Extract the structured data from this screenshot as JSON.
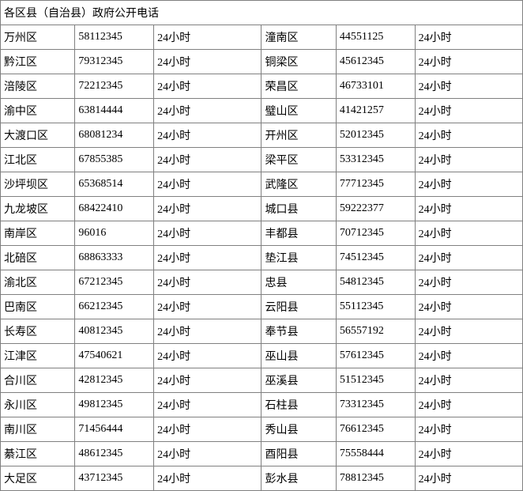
{
  "table": {
    "title": "各区县（自治县）政府公开电话",
    "rows": [
      {
        "left_district": "万州区",
        "left_phone": "58112345",
        "left_hours": "24小时",
        "right_district": "潼南区",
        "right_phone": "44551125",
        "right_hours": "24小时"
      },
      {
        "left_district": "黔江区",
        "left_phone": "79312345",
        "left_hours": "24小时",
        "right_district": "铜梁区",
        "right_phone": "45612345",
        "right_hours": "24小时"
      },
      {
        "left_district": "涪陵区",
        "left_phone": "72212345",
        "left_hours": "24小时",
        "right_district": "荣昌区",
        "right_phone": "46733101",
        "right_hours": "24小时"
      },
      {
        "left_district": "渝中区",
        "left_phone": "63814444",
        "left_hours": "24小时",
        "right_district": "璧山区",
        "right_phone": "41421257",
        "right_hours": "24小时"
      },
      {
        "left_district": "大渡口区",
        "left_phone": "68081234",
        "left_hours": "24小时",
        "right_district": "开州区",
        "right_phone": "52012345",
        "right_hours": "24小时"
      },
      {
        "left_district": "江北区",
        "left_phone": "67855385",
        "left_hours": "24小时",
        "right_district": "梁平区",
        "right_phone": "53312345",
        "right_hours": "24小时"
      },
      {
        "left_district": "沙坪坝区",
        "left_phone": "65368514",
        "left_hours": "24小时",
        "right_district": "武隆区",
        "right_phone": "77712345",
        "right_hours": "24小时"
      },
      {
        "left_district": "九龙坡区",
        "left_phone": "68422410",
        "left_hours": "24小时",
        "right_district": "城口县",
        "right_phone": "59222377",
        "right_hours": "24小时"
      },
      {
        "left_district": "南岸区",
        "left_phone": "96016",
        "left_hours": "24小时",
        "right_district": "丰都县",
        "right_phone": "70712345",
        "right_hours": "24小时"
      },
      {
        "left_district": "北碚区",
        "left_phone": "68863333",
        "left_hours": "24小时",
        "right_district": "垫江县",
        "right_phone": "74512345",
        "right_hours": "24小时"
      },
      {
        "left_district": "渝北区",
        "left_phone": "67212345",
        "left_hours": "24小时",
        "right_district": "忠县",
        "right_phone": "54812345",
        "right_hours": "24小时"
      },
      {
        "left_district": "巴南区",
        "left_phone": "66212345",
        "left_hours": "24小时",
        "right_district": "云阳县",
        "right_phone": "55112345",
        "right_hours": "24小时"
      },
      {
        "left_district": "长寿区",
        "left_phone": "40812345",
        "left_hours": "24小时",
        "right_district": "奉节县",
        "right_phone": "56557192",
        "right_hours": "24小时"
      },
      {
        "left_district": "江津区",
        "left_phone": "47540621",
        "left_hours": "24小时",
        "right_district": "巫山县",
        "right_phone": "57612345",
        "right_hours": "24小时"
      },
      {
        "left_district": "合川区",
        "left_phone": "42812345",
        "left_hours": "24小时",
        "right_district": "巫溪县",
        "right_phone": "51512345",
        "right_hours": "24小时"
      },
      {
        "left_district": "永川区",
        "left_phone": "49812345",
        "left_hours": "24小时",
        "right_district": "石柱县",
        "right_phone": "73312345",
        "right_hours": "24小时"
      },
      {
        "left_district": "南川区",
        "left_phone": "71456444",
        "left_hours": "24小时",
        "right_district": "秀山县",
        "right_phone": "76612345",
        "right_hours": "24小时"
      },
      {
        "left_district": "綦江区",
        "left_phone": "48612345",
        "left_hours": "24小时",
        "right_district": "酉阳县",
        "right_phone": "75558444",
        "right_hours": "24小时"
      },
      {
        "left_district": "大足区",
        "left_phone": "43712345",
        "left_hours": "24小时",
        "right_district": "彭水县",
        "right_phone": "78812345",
        "right_hours": "24小时"
      }
    ]
  }
}
